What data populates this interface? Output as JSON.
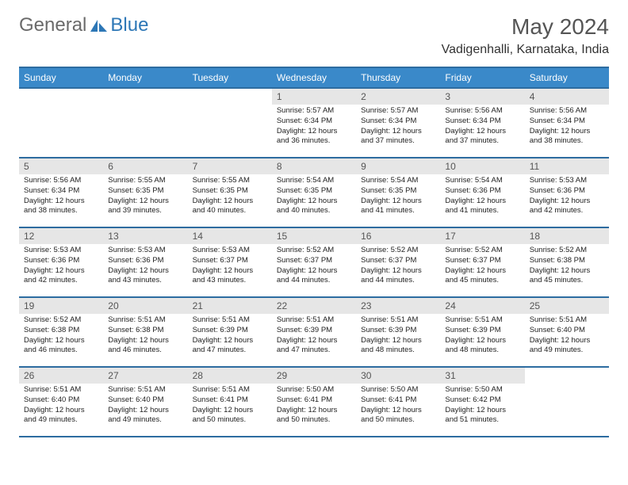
{
  "brand": {
    "part1": "General",
    "part2": "Blue"
  },
  "title": {
    "month": "May 2024",
    "location": "Vadigenhalli, Karnataka, India"
  },
  "style": {
    "header_bg": "#3a89c9",
    "header_border": "#2d6ca0",
    "daynum_bg": "#e6e6e6",
    "page_bg": "#ffffff",
    "header_font_size": 12,
    "title_font_size": 28,
    "location_font_size": 16,
    "cell_font_size": 9.5
  },
  "dayHeaders": [
    "Sunday",
    "Monday",
    "Tuesday",
    "Wednesday",
    "Thursday",
    "Friday",
    "Saturday"
  ],
  "weeks": [
    [
      {
        "n": ""
      },
      {
        "n": ""
      },
      {
        "n": ""
      },
      {
        "n": "1",
        "sr": "5:57 AM",
        "ss": "6:34 PM",
        "dl": "12 hours and 36 minutes."
      },
      {
        "n": "2",
        "sr": "5:57 AM",
        "ss": "6:34 PM",
        "dl": "12 hours and 37 minutes."
      },
      {
        "n": "3",
        "sr": "5:56 AM",
        "ss": "6:34 PM",
        "dl": "12 hours and 37 minutes."
      },
      {
        "n": "4",
        "sr": "5:56 AM",
        "ss": "6:34 PM",
        "dl": "12 hours and 38 minutes."
      }
    ],
    [
      {
        "n": "5",
        "sr": "5:56 AM",
        "ss": "6:34 PM",
        "dl": "12 hours and 38 minutes."
      },
      {
        "n": "6",
        "sr": "5:55 AM",
        "ss": "6:35 PM",
        "dl": "12 hours and 39 minutes."
      },
      {
        "n": "7",
        "sr": "5:55 AM",
        "ss": "6:35 PM",
        "dl": "12 hours and 40 minutes."
      },
      {
        "n": "8",
        "sr": "5:54 AM",
        "ss": "6:35 PM",
        "dl": "12 hours and 40 minutes."
      },
      {
        "n": "9",
        "sr": "5:54 AM",
        "ss": "6:35 PM",
        "dl": "12 hours and 41 minutes."
      },
      {
        "n": "10",
        "sr": "5:54 AM",
        "ss": "6:36 PM",
        "dl": "12 hours and 41 minutes."
      },
      {
        "n": "11",
        "sr": "5:53 AM",
        "ss": "6:36 PM",
        "dl": "12 hours and 42 minutes."
      }
    ],
    [
      {
        "n": "12",
        "sr": "5:53 AM",
        "ss": "6:36 PM",
        "dl": "12 hours and 42 minutes."
      },
      {
        "n": "13",
        "sr": "5:53 AM",
        "ss": "6:36 PM",
        "dl": "12 hours and 43 minutes."
      },
      {
        "n": "14",
        "sr": "5:53 AM",
        "ss": "6:37 PM",
        "dl": "12 hours and 43 minutes."
      },
      {
        "n": "15",
        "sr": "5:52 AM",
        "ss": "6:37 PM",
        "dl": "12 hours and 44 minutes."
      },
      {
        "n": "16",
        "sr": "5:52 AM",
        "ss": "6:37 PM",
        "dl": "12 hours and 44 minutes."
      },
      {
        "n": "17",
        "sr": "5:52 AM",
        "ss": "6:37 PM",
        "dl": "12 hours and 45 minutes."
      },
      {
        "n": "18",
        "sr": "5:52 AM",
        "ss": "6:38 PM",
        "dl": "12 hours and 45 minutes."
      }
    ],
    [
      {
        "n": "19",
        "sr": "5:52 AM",
        "ss": "6:38 PM",
        "dl": "12 hours and 46 minutes."
      },
      {
        "n": "20",
        "sr": "5:51 AM",
        "ss": "6:38 PM",
        "dl": "12 hours and 46 minutes."
      },
      {
        "n": "21",
        "sr": "5:51 AM",
        "ss": "6:39 PM",
        "dl": "12 hours and 47 minutes."
      },
      {
        "n": "22",
        "sr": "5:51 AM",
        "ss": "6:39 PM",
        "dl": "12 hours and 47 minutes."
      },
      {
        "n": "23",
        "sr": "5:51 AM",
        "ss": "6:39 PM",
        "dl": "12 hours and 48 minutes."
      },
      {
        "n": "24",
        "sr": "5:51 AM",
        "ss": "6:39 PM",
        "dl": "12 hours and 48 minutes."
      },
      {
        "n": "25",
        "sr": "5:51 AM",
        "ss": "6:40 PM",
        "dl": "12 hours and 49 minutes."
      }
    ],
    [
      {
        "n": "26",
        "sr": "5:51 AM",
        "ss": "6:40 PM",
        "dl": "12 hours and 49 minutes."
      },
      {
        "n": "27",
        "sr": "5:51 AM",
        "ss": "6:40 PM",
        "dl": "12 hours and 49 minutes."
      },
      {
        "n": "28",
        "sr": "5:51 AM",
        "ss": "6:41 PM",
        "dl": "12 hours and 50 minutes."
      },
      {
        "n": "29",
        "sr": "5:50 AM",
        "ss": "6:41 PM",
        "dl": "12 hours and 50 minutes."
      },
      {
        "n": "30",
        "sr": "5:50 AM",
        "ss": "6:41 PM",
        "dl": "12 hours and 50 minutes."
      },
      {
        "n": "31",
        "sr": "5:50 AM",
        "ss": "6:42 PM",
        "dl": "12 hours and 51 minutes."
      },
      {
        "n": ""
      }
    ]
  ],
  "labels": {
    "sunrise": "Sunrise:",
    "sunset": "Sunset:",
    "daylight": "Daylight:"
  }
}
